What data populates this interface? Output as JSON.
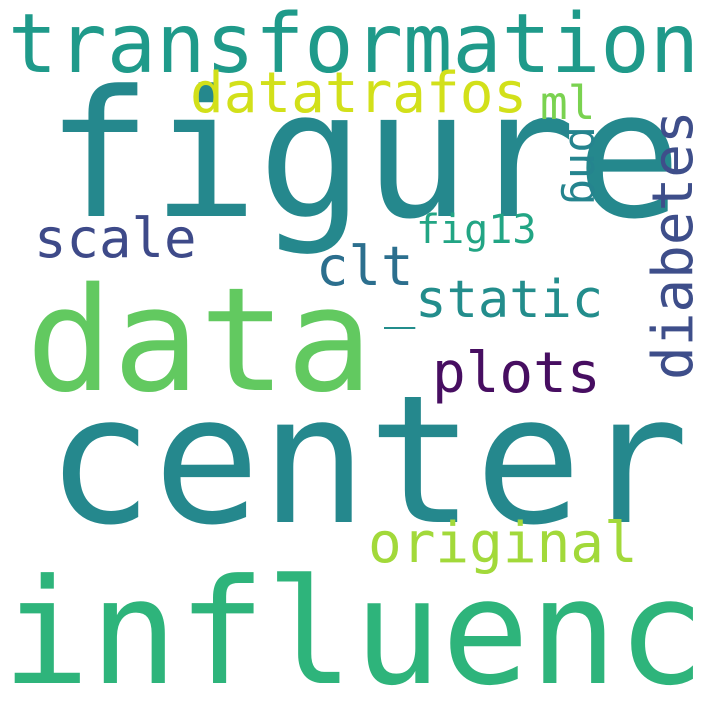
{
  "words": [
    {
      "text": "figure",
      "color": "#25888d"
    },
    {
      "text": "center",
      "color": "#25888d"
    },
    {
      "text": "data",
      "color": "#62c960"
    },
    {
      "text": "influence",
      "color": "#2eb47b"
    },
    {
      "text": "transformations",
      "color": "#1f9a8a"
    },
    {
      "text": "datatrafos",
      "color": "#d2e01a"
    },
    {
      "text": "diabetes",
      "color": "#3e4e8a"
    },
    {
      "text": "original",
      "color": "#a2d93a"
    },
    {
      "text": "plots",
      "color": "#470e61"
    },
    {
      "text": "scale",
      "color": "#3e4a89"
    },
    {
      "text": "_static",
      "color": "#238d8c"
    },
    {
      "text": "clt",
      "color": "#2c6f8e"
    },
    {
      "text": "fig13",
      "color": "#22a584"
    },
    {
      "text": "png",
      "color": "#25848e"
    },
    {
      "text": "ml",
      "color": "#7ad250"
    }
  ]
}
